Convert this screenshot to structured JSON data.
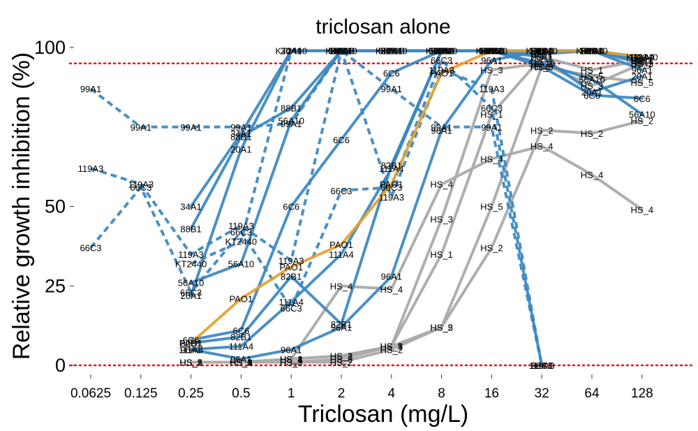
{
  "colors": {
    "blue": "#3a87c0",
    "gray": "#aaaaaa",
    "orange": "#e3a12f",
    "reference": "#ff0000"
  },
  "chart_data": {
    "type": "line",
    "title": "triclosan alone",
    "xlabel": "Triclosan (mg/L)",
    "ylabel": "Relative growth inhibition (%)",
    "x_scale": "log2",
    "categories": [
      "0.0625",
      "0.125",
      "0.25",
      "0.5",
      "1",
      "2",
      "4",
      "8",
      "16",
      "32",
      "64",
      "128"
    ],
    "x_values": [
      0.0625,
      0.125,
      0.25,
      0.5,
      1,
      2,
      4,
      8,
      16,
      32,
      64,
      128
    ],
    "yticks": [
      0,
      25,
      50,
      100
    ],
    "ylim": [
      0,
      100
    ],
    "reference_lines": [
      0,
      95
    ],
    "grid": false,
    "legend": "none",
    "series": [
      {
        "name": "99A1",
        "style": "dashed",
        "color": "blue",
        "points": [
          [
            0.0625,
            87
          ],
          [
            0.125,
            75
          ],
          [
            0.25,
            75
          ],
          [
            0.5,
            75
          ],
          [
            1,
            76
          ],
          [
            2,
            99
          ],
          [
            4,
            87
          ],
          [
            8,
            75
          ],
          [
            16,
            75
          ],
          [
            32,
            0
          ]
        ]
      },
      {
        "name": "119A3",
        "style": "dashed",
        "color": "blue",
        "points": [
          [
            0.0625,
            62
          ],
          [
            0.125,
            57
          ],
          [
            0.25,
            35
          ],
          [
            0.5,
            44
          ],
          [
            1,
            33
          ],
          [
            2,
            99
          ],
          [
            4,
            53
          ],
          [
            8,
            93
          ],
          [
            16,
            87
          ],
          [
            32,
            0
          ]
        ]
      },
      {
        "name": "66C3",
        "style": "dashed",
        "color": "blue",
        "points": [
          [
            0.0625,
            37
          ],
          [
            0.125,
            56
          ],
          [
            0.25,
            23
          ],
          [
            0.5,
            42
          ],
          [
            1,
            18
          ],
          [
            2,
            55
          ],
          [
            4,
            56
          ],
          [
            8,
            96
          ],
          [
            16,
            81
          ],
          [
            32,
            0
          ]
        ]
      },
      {
        "name": "KT2440",
        "style": "dashed",
        "color": "blue",
        "points": [
          [
            0.25,
            32
          ],
          [
            0.5,
            39
          ],
          [
            1,
            99
          ],
          [
            2,
            99
          ],
          [
            4,
            99
          ],
          [
            8,
            99
          ],
          [
            16,
            99
          ],
          [
            32,
            99
          ],
          [
            64,
            99
          ],
          [
            128,
            97
          ]
        ]
      },
      {
        "name": "56A10",
        "style": "solid",
        "color": "blue",
        "points": [
          [
            0.25,
            26
          ],
          [
            0.5,
            32
          ],
          [
            1,
            77
          ],
          [
            2,
            99
          ],
          [
            4,
            99
          ],
          [
            8,
            99
          ],
          [
            16,
            99
          ],
          [
            32,
            95
          ],
          [
            64,
            90
          ],
          [
            128,
            79
          ]
        ]
      },
      {
        "name": "34A1",
        "style": "solid",
        "color": "blue",
        "points": [
          [
            0.25,
            50
          ],
          [
            0.5,
            73
          ],
          [
            1,
            99
          ],
          [
            2,
            99
          ],
          [
            4,
            99
          ],
          [
            8,
            99
          ],
          [
            16,
            99
          ],
          [
            32,
            99
          ],
          [
            64,
            99
          ],
          [
            128,
            95
          ]
        ]
      },
      {
        "name": "88B1",
        "style": "solid",
        "color": "blue",
        "points": [
          [
            0.25,
            43
          ],
          [
            0.5,
            72
          ],
          [
            1,
            81
          ],
          [
            2,
            99
          ],
          [
            4,
            99
          ],
          [
            8,
            99
          ],
          [
            16,
            99
          ],
          [
            32,
            99
          ],
          [
            64,
            99
          ],
          [
            128,
            96
          ]
        ]
      },
      {
        "name": "20A1",
        "style": "solid",
        "color": "blue",
        "points": [
          [
            0.25,
            22
          ],
          [
            0.5,
            68
          ],
          [
            1,
            99
          ],
          [
            2,
            99
          ],
          [
            4,
            99
          ],
          [
            8,
            99
          ],
          [
            16,
            99
          ],
          [
            32,
            97
          ],
          [
            64,
            86
          ],
          [
            128,
            91
          ]
        ]
      },
      {
        "name": "6C6",
        "style": "solid",
        "color": "blue",
        "points": [
          [
            0.25,
            8
          ],
          [
            0.5,
            11
          ],
          [
            1,
            50
          ],
          [
            2,
            71
          ],
          [
            4,
            92
          ],
          [
            8,
            99
          ],
          [
            16,
            99
          ],
          [
            32,
            94
          ],
          [
            64,
            85
          ],
          [
            128,
            84
          ]
        ]
      },
      {
        "name": "82B1",
        "style": "solid",
        "color": "blue",
        "points": [
          [
            0.25,
            7
          ],
          [
            0.5,
            9
          ],
          [
            1,
            28
          ],
          [
            2,
            13
          ],
          [
            4,
            63
          ],
          [
            8,
            99
          ],
          [
            16,
            99
          ],
          [
            32,
            98
          ],
          [
            64,
            99
          ],
          [
            128,
            96
          ]
        ]
      },
      {
        "name": "111A4",
        "style": "solid",
        "color": "blue",
        "points": [
          [
            0.25,
            5
          ],
          [
            0.5,
            6
          ],
          [
            1,
            20
          ],
          [
            2,
            35
          ],
          [
            4,
            62
          ],
          [
            8,
            99
          ],
          [
            16,
            99
          ],
          [
            32,
            99
          ],
          [
            64,
            99
          ],
          [
            128,
            97
          ]
        ]
      },
      {
        "name": "96A1",
        "style": "solid",
        "color": "blue",
        "points": [
          [
            0.25,
            5
          ],
          [
            0.5,
            2
          ],
          [
            1,
            5
          ],
          [
            2,
            12
          ],
          [
            4,
            28
          ],
          [
            8,
            74
          ],
          [
            16,
            96
          ],
          [
            32,
            99
          ],
          [
            64,
            99
          ],
          [
            128,
            93
          ]
        ]
      },
      {
        "name": "PAO1",
        "style": "solid",
        "color": "orange",
        "points": [
          [
            0.25,
            7
          ],
          [
            0.5,
            21
          ],
          [
            1,
            31
          ],
          [
            2,
            38
          ],
          [
            4,
            57
          ],
          [
            8,
            92
          ],
          [
            16,
            99
          ],
          [
            32,
            99
          ],
          [
            64,
            99
          ],
          [
            128,
            97
          ]
        ]
      },
      {
        "name": "HS_1",
        "style": "solid",
        "color": "gray",
        "points": [
          [
            0.25,
            1
          ],
          [
            0.5,
            1
          ],
          [
            1,
            2
          ],
          [
            2,
            3
          ],
          [
            4,
            6
          ],
          [
            8,
            35
          ],
          [
            16,
            79
          ],
          [
            32,
            97
          ],
          [
            64,
            93
          ],
          [
            128,
            96
          ]
        ]
      },
      {
        "name": "HS_2",
        "style": "solid",
        "color": "gray",
        "points": [
          [
            0.25,
            1
          ],
          [
            0.5,
            1
          ],
          [
            1,
            1
          ],
          [
            2,
            1
          ],
          [
            4,
            5
          ],
          [
            8,
            12
          ],
          [
            16,
            37
          ],
          [
            32,
            74
          ],
          [
            64,
            73
          ],
          [
            128,
            77
          ]
        ]
      },
      {
        "name": "HS_3",
        "style": "solid",
        "color": "gray",
        "points": [
          [
            0.25,
            1
          ],
          [
            0.5,
            1
          ],
          [
            1,
            2
          ],
          [
            2,
            3
          ],
          [
            4,
            6
          ],
          [
            8,
            46
          ],
          [
            16,
            93
          ],
          [
            32,
            95
          ],
          [
            64,
            88
          ],
          [
            128,
            95
          ]
        ]
      },
      {
        "name": "HS_4",
        "style": "solid",
        "color": "gray",
        "points": [
          [
            0.5,
            1
          ],
          [
            1,
            2
          ],
          [
            2,
            25
          ],
          [
            4,
            24
          ],
          [
            8,
            57
          ],
          [
            16,
            65
          ],
          [
            32,
            69
          ],
          [
            64,
            60
          ],
          [
            128,
            49
          ]
        ]
      },
      {
        "name": "HS_5",
        "style": "solid",
        "color": "gray",
        "points": [
          [
            0.25,
            1
          ],
          [
            0.5,
            1
          ],
          [
            1,
            1
          ],
          [
            2,
            2
          ],
          [
            4,
            6
          ],
          [
            8,
            12
          ],
          [
            16,
            50
          ],
          [
            32,
            94
          ],
          [
            64,
            91
          ],
          [
            128,
            89
          ]
        ]
      }
    ]
  }
}
